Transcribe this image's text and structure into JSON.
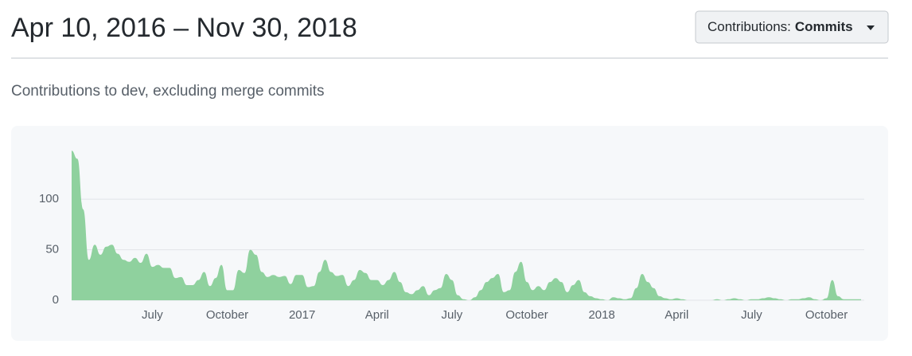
{
  "header": {
    "title": "Apr 10, 2016 – Nov 30, 2018",
    "button": {
      "label": "Contributions:",
      "value": "Commits"
    }
  },
  "subtitle": "Contributions to dev, excluding merge commits",
  "chart_data": {
    "type": "area",
    "color": "#8fd19e",
    "grid": true,
    "ylim": [
      0,
      160
    ],
    "yticks": [
      0,
      50,
      100
    ],
    "categories": [
      null,
      null,
      null,
      null,
      null,
      null,
      null,
      null,
      null,
      null,
      null,
      null,
      null,
      null,
      "July",
      null,
      null,
      null,
      null,
      null,
      null,
      null,
      null,
      null,
      null,
      null,
      null,
      "October",
      null,
      null,
      null,
      null,
      null,
      null,
      null,
      null,
      null,
      null,
      null,
      null,
      "2017",
      null,
      null,
      null,
      null,
      null,
      null,
      null,
      null,
      null,
      null,
      null,
      null,
      "April",
      null,
      null,
      null,
      null,
      null,
      null,
      null,
      null,
      null,
      null,
      null,
      null,
      "July",
      null,
      null,
      null,
      null,
      null,
      null,
      null,
      null,
      null,
      null,
      null,
      null,
      "October",
      null,
      null,
      null,
      null,
      null,
      null,
      null,
      null,
      null,
      null,
      null,
      null,
      "2018",
      null,
      null,
      null,
      null,
      null,
      null,
      null,
      null,
      null,
      null,
      null,
      null,
      "April",
      null,
      null,
      null,
      null,
      null,
      null,
      null,
      null,
      null,
      null,
      null,
      null,
      "July",
      null,
      null,
      null,
      null,
      null,
      null,
      null,
      null,
      null,
      null,
      null,
      null,
      "October",
      null,
      null,
      null,
      null,
      null,
      null
    ],
    "values": [
      148,
      140,
      90,
      40,
      55,
      45,
      53,
      55,
      46,
      40,
      38,
      42,
      37,
      46,
      33,
      35,
      32,
      32,
      22,
      23,
      15,
      15,
      20,
      28,
      14,
      22,
      35,
      10,
      10,
      30,
      27,
      50,
      45,
      28,
      23,
      25,
      23,
      24,
      16,
      25,
      25,
      13,
      14,
      28,
      40,
      28,
      24,
      25,
      14,
      20,
      30,
      27,
      20,
      20,
      15,
      20,
      28,
      18,
      8,
      6,
      10,
      14,
      5,
      10,
      12,
      26,
      20,
      5,
      1,
      0,
      3,
      10,
      18,
      22,
      26,
      8,
      10,
      28,
      38,
      18,
      10,
      14,
      10,
      18,
      22,
      18,
      8,
      15,
      20,
      8,
      4,
      2,
      1,
      0,
      3,
      2,
      1,
      2,
      12,
      26,
      18,
      12,
      4,
      2,
      1,
      2,
      1,
      0,
      0,
      0,
      0,
      0,
      1,
      0,
      1,
      2,
      1,
      0,
      1,
      1,
      2,
      3,
      2,
      1,
      0,
      1,
      1,
      2,
      3,
      1,
      0,
      2,
      20,
      4,
      1,
      1,
      1,
      1
    ]
  }
}
